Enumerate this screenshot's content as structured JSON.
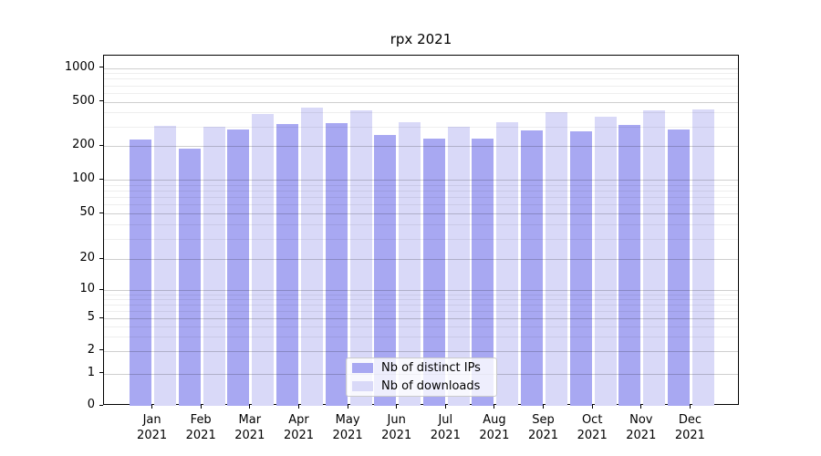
{
  "chart_data": {
    "type": "bar",
    "title": "rpx 2021",
    "categories": [
      "Jan 2021",
      "Feb 2021",
      "Mar 2021",
      "Apr 2021",
      "May 2021",
      "Jun 2021",
      "Jul 2021",
      "Aug 2021",
      "Sep 2021",
      "Oct 2021",
      "Nov 2021",
      "Dec 2021"
    ],
    "series": [
      {
        "name": "Nb of distinct IPs",
        "color": "#a8a8f2",
        "values": [
          230,
          190,
          280,
          315,
          320,
          250,
          235,
          235,
          275,
          270,
          310,
          280
        ]
      },
      {
        "name": "Nb of downloads",
        "color": "#d9d9f8",
        "values": [
          305,
          300,
          385,
          440,
          420,
          330,
          300,
          325,
          405,
          365,
          420,
          430
        ]
      }
    ],
    "xlabel": "",
    "ylabel": "",
    "yscale": "symlog",
    "yticks": [
      0,
      1,
      2,
      5,
      10,
      20,
      50,
      100,
      200,
      500,
      1000
    ],
    "ylim": [
      0,
      1300
    ],
    "grid": true,
    "legend_position": "lower center"
  }
}
